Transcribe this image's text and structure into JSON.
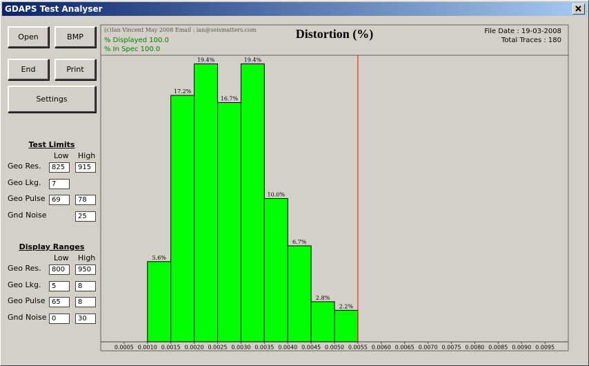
{
  "window": {
    "title": "GDAPS Test Analyser"
  },
  "buttons": [
    "Open",
    "BMP",
    "End",
    "Print",
    "Settings"
  ],
  "test_limits": {
    "title": "Test Limits",
    "columns": [
      "Low",
      "High"
    ],
    "rows": [
      {
        "label": "Geo Res.",
        "low": "825",
        "high": "915"
      },
      {
        "label": "Geo Lkg.",
        "low": "7",
        "high": null
      },
      {
        "label": "Geo Pulse",
        "low": "69",
        "high": "78"
      },
      {
        "label": "Gnd Noise",
        "low": null,
        "high": "25"
      }
    ]
  },
  "display_ranges": {
    "title": "Display Ranges",
    "columns": [
      "Low",
      "High"
    ],
    "rows": [
      {
        "label": "Geo Res.",
        "low": "800",
        "high": "950"
      },
      {
        "label": "Geo Lkg.",
        "low": "5",
        "high": "8"
      },
      {
        "label": "Geo Pulse",
        "low": "65",
        "high": "8"
      },
      {
        "label": "Gnd Noise",
        "low": "0",
        "high": "30"
      }
    ]
  },
  "header": {
    "copyright": "(c)Ian Vincent May 2008 Email : ian@seismatters.com",
    "displayed": "% Displayed 100.0",
    "in_spec": "% In Spec 100.0",
    "file_date": "File Date : 19-03-2008",
    "total_traces": "Total Traces : 180"
  },
  "chart_data": {
    "type": "histogram",
    "title": "Distortion (%)",
    "bins": [
      0.001,
      0.0015,
      0.002,
      0.0025,
      0.003,
      0.0035,
      0.004,
      0.0045,
      0.005,
      0.0055
    ],
    "values": [
      5.6,
      17.2,
      19.4,
      16.7,
      19.4,
      10.0,
      6.7,
      2.8,
      2.2
    ],
    "value_labels": [
      "5.6%",
      "17.2%",
      "19.4%",
      "16.7%",
      "19.4%",
      "10.0%",
      "6.7%",
      "2.8%",
      "2.2%"
    ],
    "color": "#00ff00",
    "xlim": [
      0,
      0.01
    ],
    "ylim": [
      0,
      20
    ],
    "xticks": [
      0.0005,
      {
        "value": 0.001,
        "label": "0.0010"
      },
      0.0015,
      {
        "value": 0.002,
        "label": "0.0020"
      },
      0.0025,
      {
        "value": 0.003,
        "label": "0.0030"
      },
      0.0035,
      {
        "value": 0.004,
        "label": "0.0040"
      },
      0.0045,
      {
        "value": 0.005,
        "label": "0.0050"
      },
      0.0055,
      {
        "value": 0.006,
        "label": "0.0060"
      },
      0.0065,
      {
        "value": 0.007,
        "label": "0.0070"
      },
      0.0075,
      {
        "value": 0.008,
        "label": "0.0080"
      },
      0.0085,
      {
        "value": 0.009,
        "label": "0.0090"
      },
      0.0095
    ],
    "limit_line": {
      "value": 0.0055,
      "color": "#ff0000"
    }
  }
}
